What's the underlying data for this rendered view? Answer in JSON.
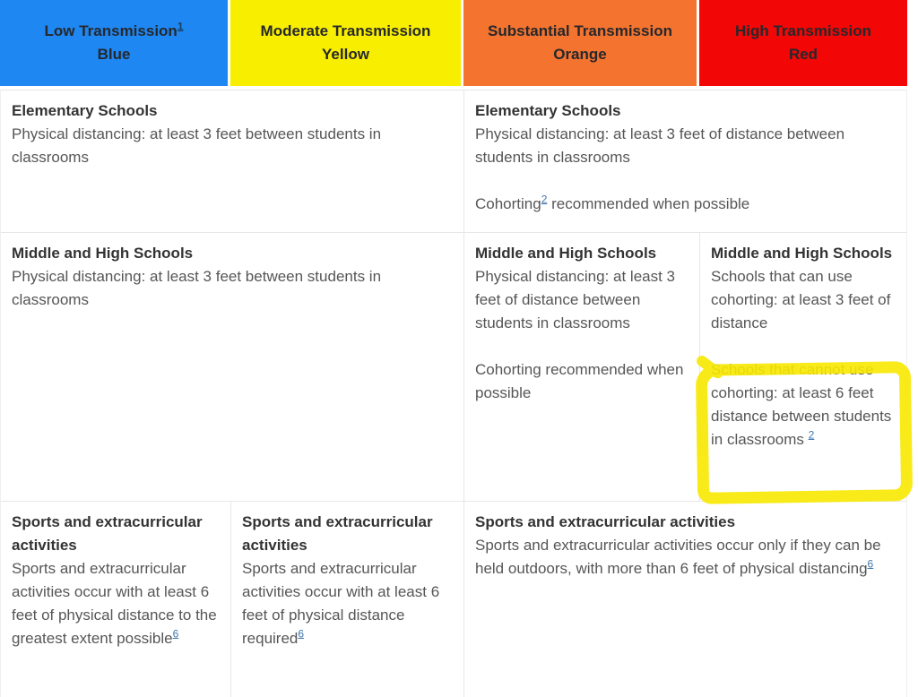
{
  "colors": {
    "low_blue": "#1e87f2",
    "moderate_yellow": "#f8ee00",
    "substantial_orange": "#f4732f",
    "high_red": "#f20606",
    "grid_line": "#e7e7e7",
    "link_blue": "#4178ad",
    "highlight_marker": "#f8e800"
  },
  "header": {
    "cells": [
      {
        "line1": "Low Transmission",
        "sup": "1",
        "line2": "Blue"
      },
      {
        "line1": "Moderate Transmission",
        "sup": "",
        "line2": "Yellow"
      },
      {
        "line1": "Substantial Transmission",
        "sup": "",
        "line2": "Orange"
      },
      {
        "line1": "High Transmission",
        "sup": "",
        "line2": "Red"
      }
    ]
  },
  "rows": {
    "elementary": {
      "low_moderate": {
        "title": "Elementary Schools",
        "p1": "Physical distancing: at least 3 feet between students in classrooms"
      },
      "substantial_high": {
        "title": "Elementary Schools",
        "p1": "Physical distancing: at least 3 feet of distance between students in classrooms",
        "p2_before": "Cohorting",
        "p2_sup": "2",
        "p2_after": " recommended when possible"
      }
    },
    "middle_high": {
      "low_moderate": {
        "title": "Middle and High Schools",
        "p1": "Physical distancing: at least 3 feet between students in classrooms"
      },
      "substantial": {
        "title": "Middle and High Schools",
        "p1": "Physical distancing: at least 3 feet of distance between students in classrooms",
        "p2": "Cohorting recommended when possible"
      },
      "high": {
        "title": "Middle and High Schools",
        "p1": "Schools that can use cohorting: at least 3 feet of distance",
        "p2_before": "Schools that cannot use cohorting: at least 6 feet distance between students in classrooms ",
        "p2_sup": "2"
      }
    },
    "sports": {
      "low": {
        "title": "Sports and extracurricular activities",
        "p1_before": "Sports and extracurricular activities occur with at least 6 feet of physical distance to the greatest extent possible",
        "p1_sup": "6"
      },
      "moderate": {
        "title": "Sports and extracurricular activities",
        "p1_before": "Sports and extracurricular activities occur with at least 6 feet of physical distance required",
        "p1_sup": "6"
      },
      "substantial_high": {
        "title": "Sports and extracurricular activities",
        "p1_before": "Sports and extracurricular activities occur only if they can be held outdoors, with more than 6 feet of physical distancing",
        "p1_sup": "6"
      }
    }
  },
  "annotation": {
    "type": "hand-drawn yellow marker rectangle",
    "around": "Schools that cannot use cohorting paragraph (High Transmission column)"
  }
}
